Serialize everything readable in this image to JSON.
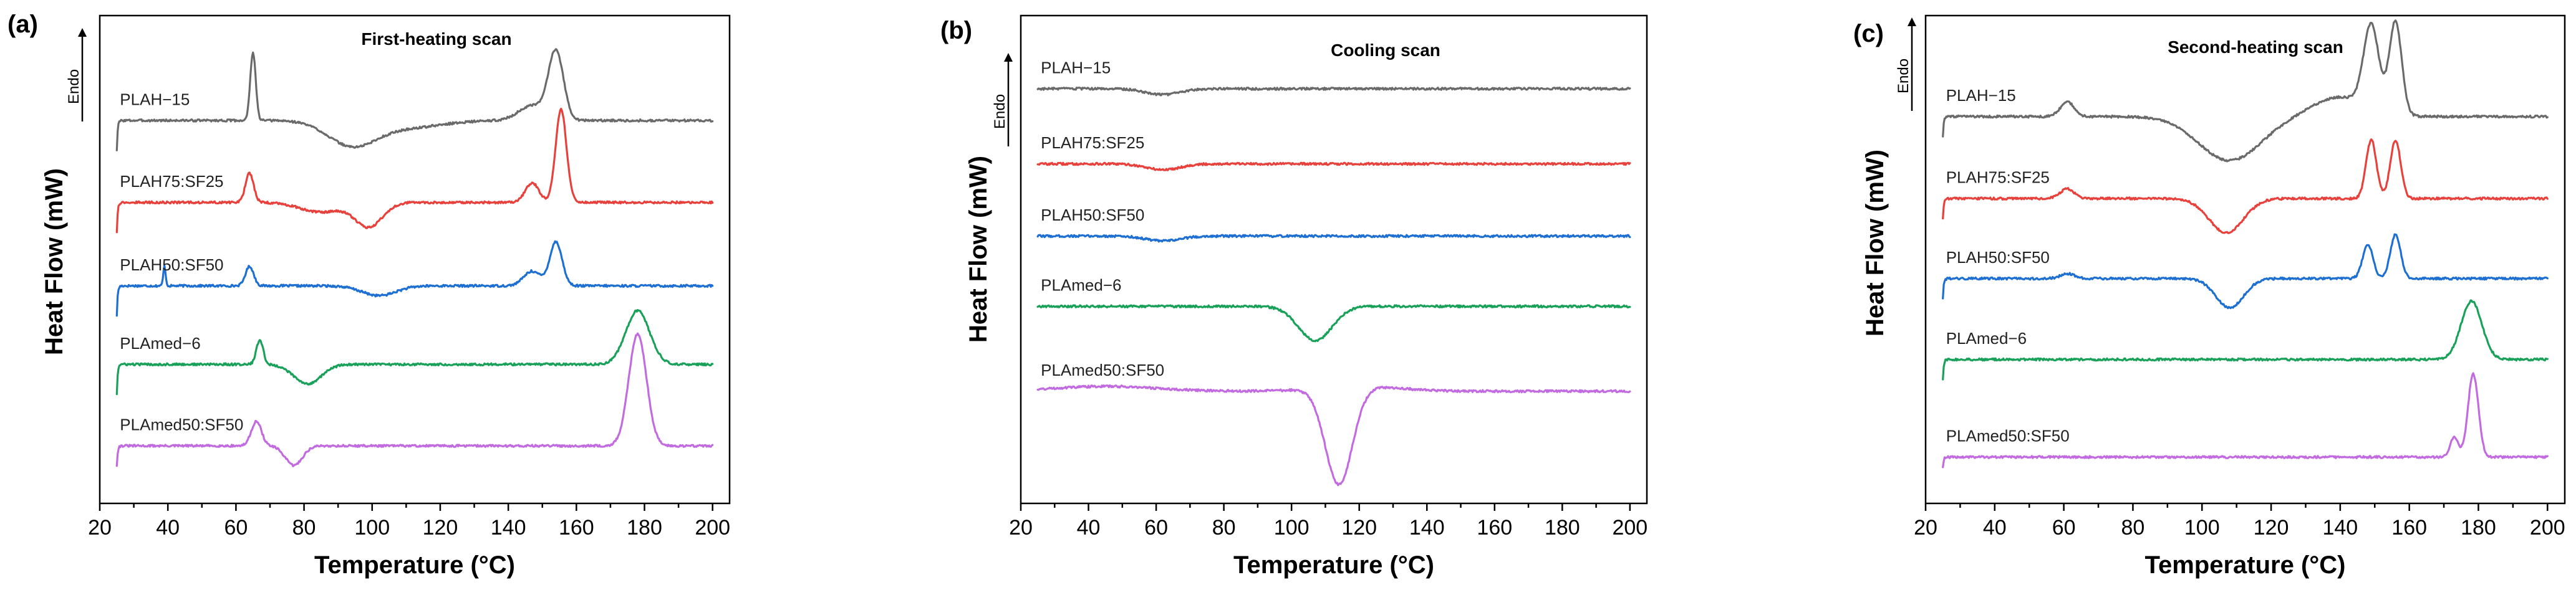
{
  "chart_data": [
    {
      "type": "line",
      "panel": "(a)",
      "title": "First-heating scan",
      "xlabel": "Temperature (°C)",
      "ylabel": "Heat Flow (mW)",
      "endo_label": "Endo",
      "xlim": [
        20,
        205
      ],
      "xticks": [
        20,
        40,
        60,
        80,
        100,
        120,
        140,
        160,
        180,
        200
      ],
      "ylim": [
        0,
        100
      ],
      "grid": false,
      "series": [
        {
          "name": "PLAH−15",
          "color": "#6a6a6a",
          "baseline": 78.5,
          "left_drop": 6,
          "x_start": 25,
          "x_end": 200,
          "features": [
            [
              65,
              14,
              0.8
            ],
            [
              94,
              -5,
              7
            ],
            [
              110,
              -1.5,
              10
            ],
            [
              147,
              3,
              4
            ],
            [
              154,
              14,
              2.2
            ]
          ]
        },
        {
          "name": "PLAH75:SF25",
          "color": "#e8413c",
          "baseline": 61.7,
          "left_drop": 6,
          "x_start": 25,
          "x_end": 200,
          "features": [
            [
              64,
              6,
              1.2
            ],
            [
              85,
              -2,
              6
            ],
            [
              99,
              -5,
              4
            ],
            [
              147,
              4,
              2
            ],
            [
              155.5,
              19,
              1.6
            ]
          ]
        },
        {
          "name": "PLAH50:SF50",
          "color": "#1e6fd2",
          "baseline": 44.6,
          "left_drop": 6,
          "x_start": 25,
          "x_end": 200,
          "features": [
            [
              39,
              4,
              0.35
            ],
            [
              64,
              4,
              1.2
            ],
            [
              102,
              -2,
              5
            ],
            [
              147,
              3,
              2.5
            ],
            [
              154,
              9,
              1.8
            ]
          ]
        },
        {
          "name": "PLAmed−6",
          "color": "#19a15a",
          "baseline": 28.5,
          "left_drop": 6,
          "x_start": 25,
          "x_end": 200,
          "features": [
            [
              67,
              5,
              1.0
            ],
            [
              81,
              -4,
              4
            ],
            [
              178,
              11,
              3.5
            ]
          ]
        },
        {
          "name": "PLAmed50:SF50",
          "color": "#c26be0",
          "baseline": 11.8,
          "left_drop": 4,
          "x_start": 25,
          "x_end": 200,
          "features": [
            [
              66,
              5,
              1.5
            ],
            [
              77,
              -4,
              2.5
            ],
            [
              178,
              23,
              2.6
            ]
          ]
        }
      ]
    },
    {
      "type": "line",
      "panel": "(b)",
      "title": "Cooling scan",
      "xlabel": "Temperature (°C)",
      "ylabel": "Heat Flow (mW)",
      "endo_label": "Endo",
      "xlim": [
        20,
        205
      ],
      "xticks": [
        20,
        40,
        60,
        80,
        100,
        120,
        140,
        160,
        180,
        200
      ],
      "ylim": [
        0,
        100
      ],
      "grid": false,
      "series": [
        {
          "name": "PLAH−15",
          "color": "#6a6a6a",
          "baseline": 85,
          "left_drop": 0,
          "x_start": 25,
          "x_end": 200,
          "features": [
            [
              62,
              -1.2,
              5
            ]
          ]
        },
        {
          "name": "PLAH75:SF25",
          "color": "#e8413c",
          "baseline": 69.6,
          "left_drop": 0,
          "x_start": 25,
          "x_end": 200,
          "features": [
            [
              62,
              -1.2,
              5
            ]
          ]
        },
        {
          "name": "PLAH50:SF50",
          "color": "#1e6fd2",
          "baseline": 54.8,
          "left_drop": 0,
          "x_start": 25,
          "x_end": 200,
          "features": [
            [
              62,
              -1.0,
              5
            ]
          ]
        },
        {
          "name": "PLAmed−6",
          "color": "#19a15a",
          "baseline": 40.4,
          "left_drop": 0,
          "x_start": 25,
          "x_end": 200,
          "features": [
            [
              107,
              -7,
              5
            ]
          ]
        },
        {
          "name": "PLAmed50:SF50",
          "color": "#c26be0",
          "baseline": 23,
          "left_drop": 0,
          "x_start": 25,
          "x_end": 200,
          "features": [
            [
              45,
              1,
              15
            ],
            [
              114,
              -20,
              4
            ],
            [
              120,
              1,
              12
            ]
          ]
        }
      ]
    },
    {
      "type": "line",
      "panel": "(c)",
      "title": "Second-heating scan",
      "xlabel": "Temperature (°C)",
      "ylabel": "Heat Flow (mW)",
      "endo_label": "Endo",
      "xlim": [
        20,
        205
      ],
      "xticks": [
        20,
        40,
        60,
        80,
        100,
        120,
        140,
        160,
        180,
        200
      ],
      "ylim": [
        0,
        100
      ],
      "grid": false,
      "series": [
        {
          "name": "PLAH−15",
          "color": "#6a6a6a",
          "baseline": 79.3,
          "left_drop": 4,
          "x_start": 25,
          "x_end": 200,
          "features": [
            [
              61,
              3,
              2
            ],
            [
              108,
              -9,
              9
            ],
            [
              140,
              4,
              8
            ],
            [
              149,
              17,
              2.2
            ],
            [
              156,
              19,
              1.8
            ]
          ]
        },
        {
          "name": "PLAH75:SF25",
          "color": "#e8413c",
          "baseline": 62.5,
          "left_drop": 4,
          "x_start": 25,
          "x_end": 200,
          "features": [
            [
              61,
              2,
              2
            ],
            [
              107,
              -7,
              5
            ],
            [
              149,
              12,
              1.5
            ],
            [
              156,
              12,
              1.5
            ]
          ]
        },
        {
          "name": "PLAH50:SF50",
          "color": "#1e6fd2",
          "baseline": 46.1,
          "left_drop": 4,
          "x_start": 25,
          "x_end": 200,
          "features": [
            [
              61,
              1,
              2
            ],
            [
              108,
              -6,
              4
            ],
            [
              148,
              7,
              1.5
            ],
            [
              156,
              9,
              1.5
            ]
          ]
        },
        {
          "name": "PLAmed−6",
          "color": "#19a15a",
          "baseline": 29.5,
          "left_drop": 4,
          "x_start": 25,
          "x_end": 200,
          "features": [
            [
              178,
              12,
              3.0
            ]
          ]
        },
        {
          "name": "PLAmed50:SF50",
          "color": "#c26be0",
          "baseline": 9.5,
          "left_drop": 2,
          "x_start": 25,
          "x_end": 200,
          "features": [
            [
              173,
              4,
              1.2
            ],
            [
              178.5,
              17,
              1.5
            ]
          ]
        }
      ]
    }
  ]
}
